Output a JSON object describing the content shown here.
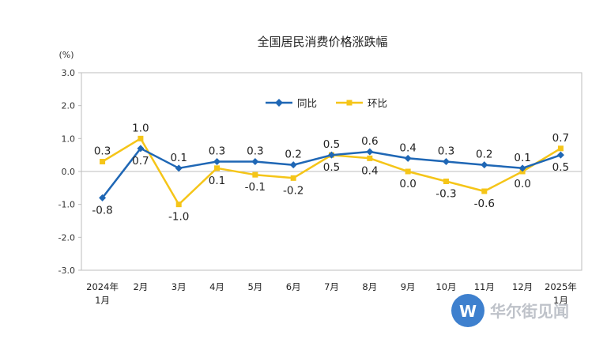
{
  "chart_data": {
    "type": "line",
    "title": "全国居民消费价格涨跌幅",
    "unit_label": "(%)",
    "ylim": [
      -3.0,
      3.0
    ],
    "yticks": [
      "3.0",
      "2.0",
      "1.0",
      "0.0",
      "-1.0",
      "-2.0",
      "-3.0"
    ],
    "categories": [
      [
        "2024年",
        "1月"
      ],
      [
        "2月"
      ],
      [
        "3月"
      ],
      [
        "4月"
      ],
      [
        "5月"
      ],
      [
        "6月"
      ],
      [
        "7月"
      ],
      [
        "8月"
      ],
      [
        "9月"
      ],
      [
        "10月"
      ],
      [
        "11月"
      ],
      [
        "12月"
      ],
      [
        "2025年",
        "1月"
      ]
    ],
    "series": [
      {
        "name": "同比",
        "color": "#1f67b5",
        "marker": "diamond",
        "values": [
          -0.8,
          0.7,
          0.1,
          0.3,
          0.3,
          0.2,
          0.5,
          0.6,
          0.4,
          0.3,
          0.2,
          0.1,
          0.5
        ],
        "labels": [
          "-0.8",
          "0.7",
          "0.1",
          "0.3",
          "0.3",
          "0.2",
          "0.5",
          "0.6",
          "0.4",
          "0.3",
          "0.2",
          "0.1",
          "0.5"
        ]
      },
      {
        "name": "环比",
        "color": "#f5c518",
        "marker": "square",
        "values": [
          0.3,
          1.0,
          -1.0,
          0.1,
          -0.1,
          -0.2,
          0.5,
          0.4,
          0.0,
          -0.3,
          -0.6,
          0.0,
          0.7
        ],
        "labels": [
          "0.3",
          "1.0",
          "-1.0",
          "0.1",
          "-0.1",
          "-0.2",
          "0.5",
          "0.4",
          "0.0",
          "-0.3",
          "-0.6",
          "0.0",
          "0.7"
        ]
      }
    ],
    "grid": false,
    "legend_position": "top-center"
  },
  "watermark": {
    "text": "华尔街见闻",
    "logo_letter": "W",
    "logo_color": "#2a73c9"
  }
}
